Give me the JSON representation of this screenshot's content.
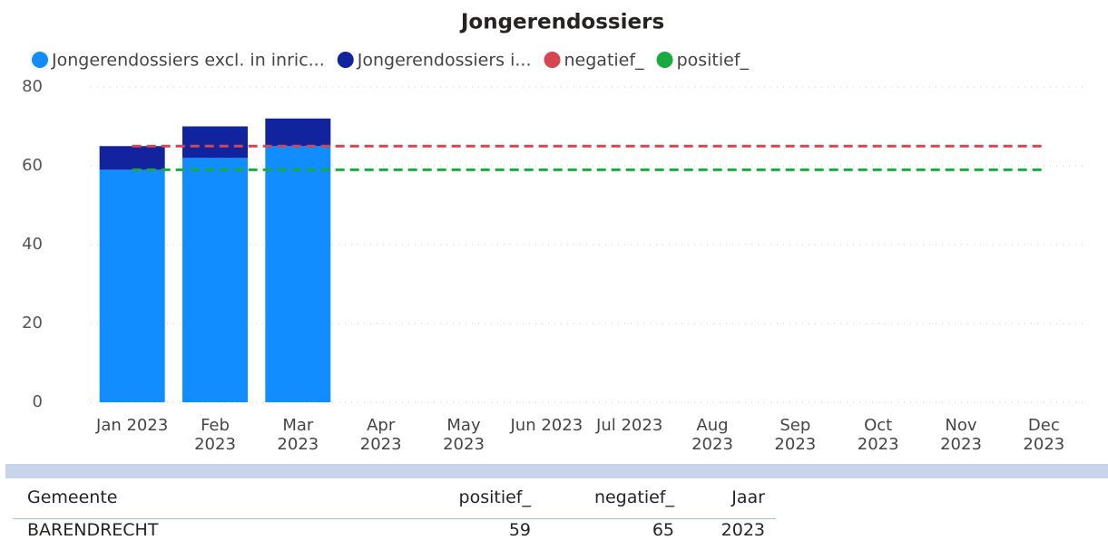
{
  "chart_data": {
    "type": "bar",
    "stacked": true,
    "title": "Jongerendossiers",
    "categories": [
      "Jan 2023",
      "Feb 2023",
      "Mar 2023",
      "Apr 2023",
      "May 2023",
      "Jun 2023",
      "Jul 2023",
      "Aug 2023",
      "Sep 2023",
      "Oct 2023",
      "Nov 2023",
      "Dec 2023"
    ],
    "series": [
      {
        "name": "Jongerendossiers excl. in inric...",
        "color": "#118dff",
        "type": "bar",
        "values": [
          59,
          62,
          65,
          null,
          null,
          null,
          null,
          null,
          null,
          null,
          null,
          null
        ]
      },
      {
        "name": "Jongerendossiers i...",
        "color": "#12239e",
        "type": "bar",
        "values": [
          6,
          8,
          7,
          null,
          null,
          null,
          null,
          null,
          null,
          null,
          null,
          null
        ]
      },
      {
        "name": "negatief_",
        "color": "#d64550",
        "type": "line",
        "values": [
          65,
          65,
          65,
          65,
          65,
          65,
          65,
          65,
          65,
          65,
          65,
          65
        ]
      },
      {
        "name": "positief_",
        "color": "#1aab40",
        "type": "line",
        "values": [
          59,
          59,
          59,
          59,
          59,
          59,
          59,
          59,
          59,
          59,
          59,
          59
        ]
      }
    ],
    "ylim": [
      0,
      80
    ],
    "yticks": [
      0,
      20,
      40,
      60,
      80
    ],
    "grid": true,
    "legend": "top"
  },
  "table": {
    "headers": [
      "Gemeente",
      "positief_",
      "negatief_",
      "Jaar"
    ],
    "rows": [
      [
        "BARENDRECHT",
        59,
        65,
        2023
      ]
    ]
  }
}
